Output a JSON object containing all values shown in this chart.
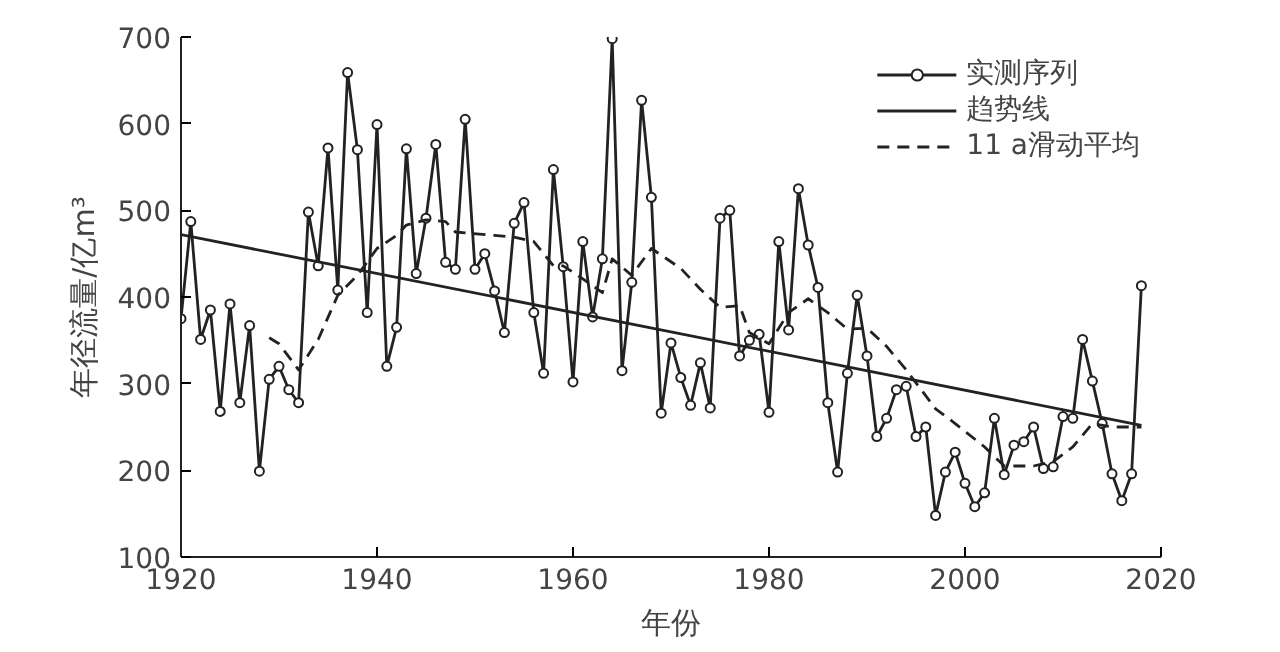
{
  "chart_data": {
    "type": "line",
    "xlabel": "年份",
    "ylabel": "年径流量/亿m³",
    "xlim": [
      1920,
      2020
    ],
    "ylim": [
      100,
      700
    ],
    "xticks": [
      1920,
      1940,
      1960,
      1980,
      2000,
      2020
    ],
    "yticks": [
      100,
      200,
      300,
      400,
      500,
      600,
      700
    ],
    "grid": false,
    "legend": "top right",
    "series": [
      {
        "name": "实测序列",
        "color": "#222222",
        "marker": "circle",
        "line_style": "solid",
        "x": [
          1920,
          1921,
          1922,
          1923,
          1924,
          1925,
          1926,
          1927,
          1928,
          1929,
          1930,
          1931,
          1932,
          1933,
          1934,
          1935,
          1936,
          1937,
          1938,
          1939,
          1940,
          1941,
          1942,
          1943,
          1944,
          1945,
          1946,
          1947,
          1948,
          1949,
          1950,
          1951,
          1952,
          1953,
          1954,
          1955,
          1956,
          1957,
          1958,
          1959,
          1960,
          1961,
          1962,
          1963,
          1964,
          1965,
          1966,
          1967,
          1968,
          1969,
          1970,
          1971,
          1972,
          1973,
          1974,
          1975,
          1976,
          1977,
          1978,
          1979,
          1980,
          1981,
          1982,
          1983,
          1984,
          1985,
          1986,
          1987,
          1988,
          1989,
          1990,
          1991,
          1992,
          1993,
          1994,
          1995,
          1996,
          1997,
          1998,
          1999,
          2000,
          2001,
          2002,
          2003,
          2004,
          2005,
          2006,
          2007,
          2008,
          2009,
          2010,
          2011,
          2012,
          2013,
          2014,
          2015,
          2016,
          2017,
          2018
        ],
        "values": [
          375,
          487,
          351,
          385,
          268,
          392,
          278,
          367,
          199,
          305,
          320,
          293,
          278,
          498,
          436,
          572,
          408,
          659,
          570,
          382,
          599,
          320,
          365,
          571,
          427,
          491,
          576,
          440,
          432,
          605,
          432,
          450,
          407,
          359,
          485,
          509,
          382,
          312,
          547,
          435,
          302,
          464,
          377,
          444,
          698,
          315,
          417,
          627,
          515,
          266,
          347,
          307,
          275,
          324,
          272,
          491,
          500,
          332,
          350,
          357,
          267,
          464,
          362,
          525,
          460,
          411,
          278,
          198,
          312,
          402,
          332,
          239,
          260,
          293,
          297,
          239,
          250,
          148,
          198,
          221,
          185,
          158,
          174,
          260,
          195,
          229,
          233,
          250,
          202,
          204,
          262,
          260,
          351,
          303,
          254,
          196,
          165,
          196,
          413
        ]
      },
      {
        "name": "趋势线",
        "color": "#222222",
        "marker": "none",
        "line_style": "solid",
        "x": [
          1920,
          2018
        ],
        "values": [
          472,
          252
        ]
      },
      {
        "name": "11 a滑动平均",
        "color": "#222222",
        "marker": "none",
        "line_style": "dashed",
        "x": [
          1929,
          1930,
          1932,
          1934,
          1936,
          1938,
          1940,
          1942,
          1943,
          1945,
          1947,
          1948,
          1949,
          1952,
          1954,
          1956,
          1958,
          1959,
          1961,
          1963,
          1964,
          1966,
          1968,
          1971,
          1973,
          1975,
          1977,
          1978,
          1980,
          1982,
          1984,
          1986,
          1988,
          1990,
          1992,
          1994,
          1997,
          1999,
          2002,
          2004,
          2007,
          2009,
          2011,
          2013,
          2015,
          2018
        ],
        "values": [
          353,
          346,
          316,
          351,
          402,
          425,
          456,
          471,
          483,
          489,
          487,
          475,
          474,
          471,
          469,
          464,
          436,
          436,
          421,
          405,
          444,
          425,
          456,
          433,
          409,
          388,
          390,
          359,
          346,
          382,
          398,
          382,
          363,
          364,
          343,
          316,
          271,
          254,
          227,
          205,
          205,
          210,
          227,
          254,
          250,
          250
        ]
      }
    ]
  }
}
